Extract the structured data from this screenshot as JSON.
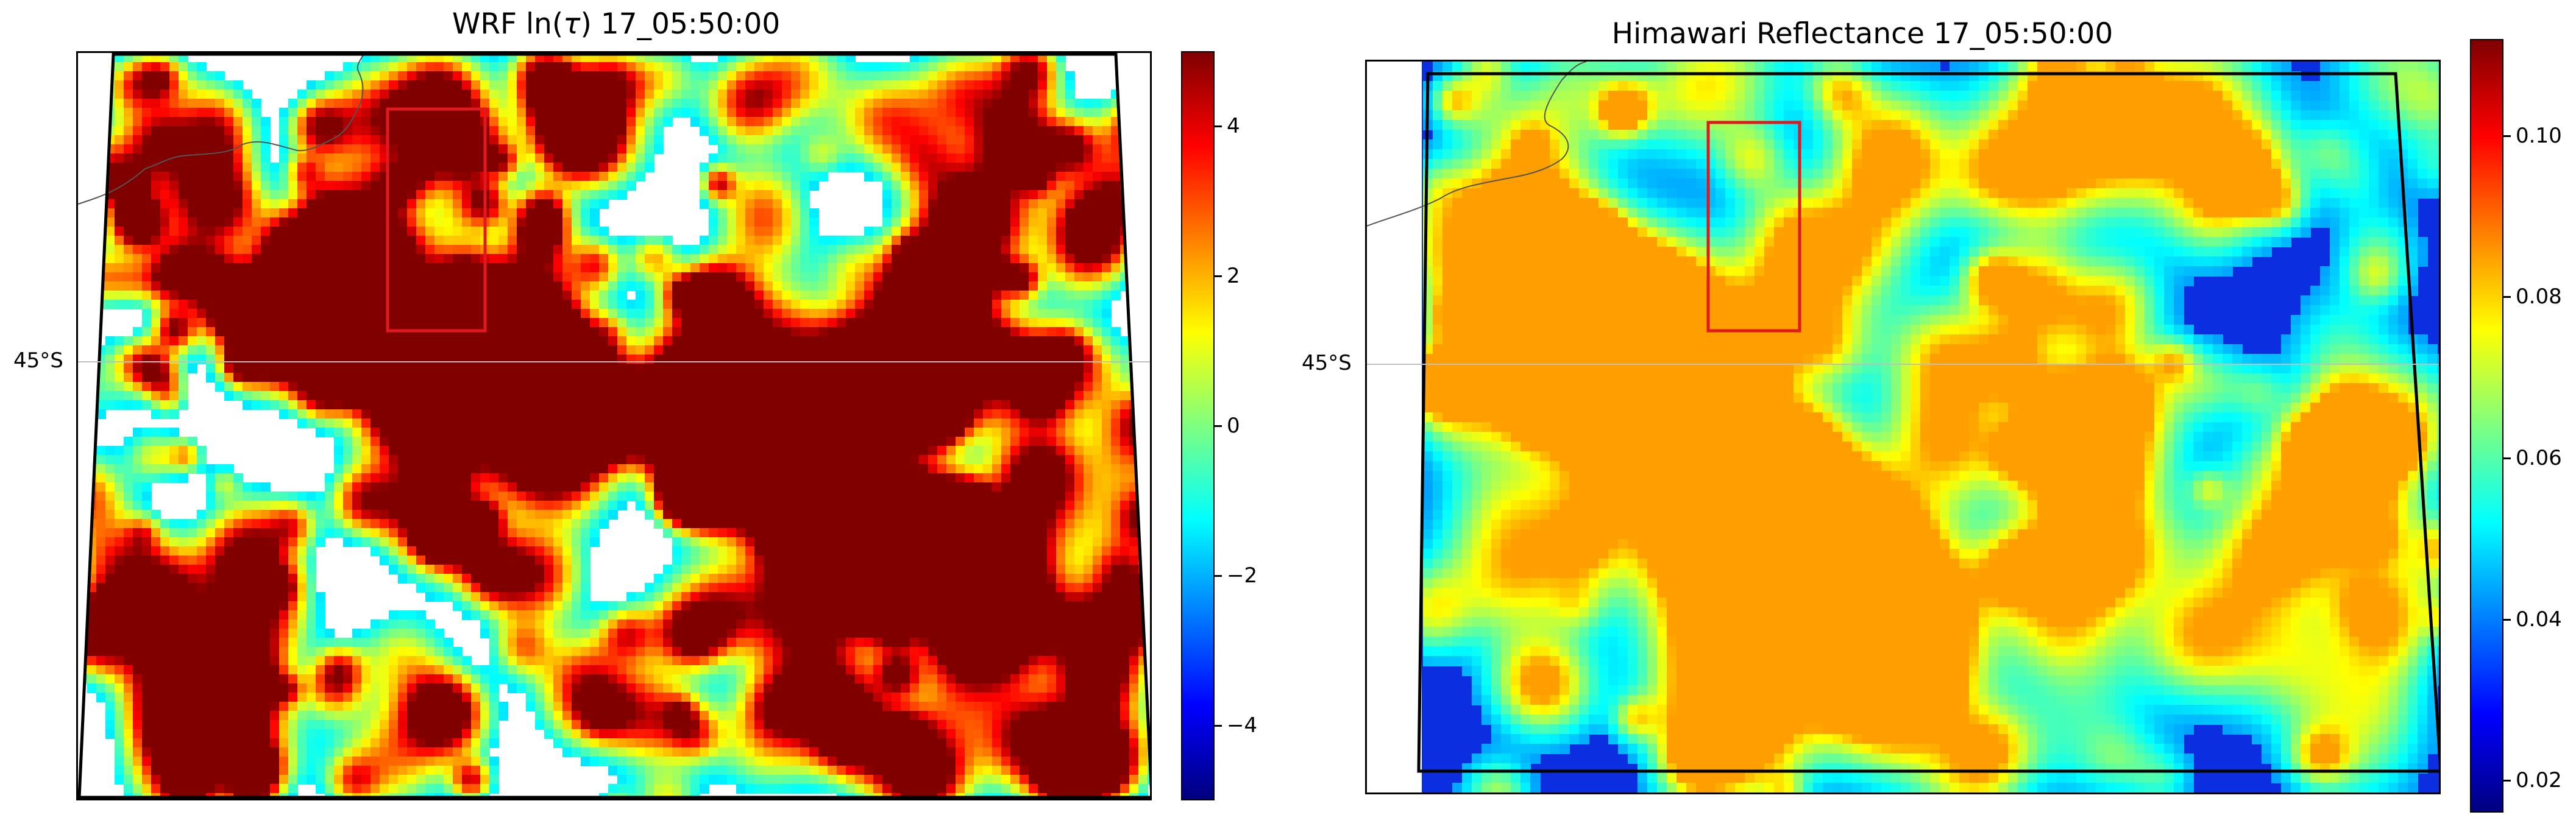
{
  "chart_data": [
    {
      "type": "heatmap",
      "title": "WRF ln(τ) 17_05:50:00",
      "title_parts": {
        "prefix": "WRF ln(",
        "symbol": "τ",
        "suffix": ") 17_05:50:00"
      },
      "colormap": "jet",
      "colorbar": {
        "min": -5,
        "max": 5,
        "ticks": [
          -4,
          -2,
          0,
          2,
          4
        ],
        "tick_labels": [
          "−4",
          "−2",
          "0",
          "2",
          "4"
        ]
      },
      "lat_label": "45°S",
      "highlight_box_color": "#e0191e",
      "missing_color": "#ffffff",
      "coastline_color": "#555555"
    },
    {
      "type": "heatmap",
      "title": "Himawari Reflectance 17_05:50:00",
      "colormap": "jet",
      "colorbar": {
        "min": 0.016,
        "max": 0.112,
        "ticks": [
          0.02,
          0.04,
          0.06,
          0.08,
          0.1
        ],
        "tick_labels": [
          "0.02",
          "0.04",
          "0.06",
          "0.08",
          "0.10"
        ]
      },
      "lat_label": "45°S",
      "highlight_box_color": "#e0191e",
      "coastline_color": "#555555"
    }
  ],
  "colors": {
    "gridline": "#bfbfbf",
    "domain_outline": "#000000"
  }
}
